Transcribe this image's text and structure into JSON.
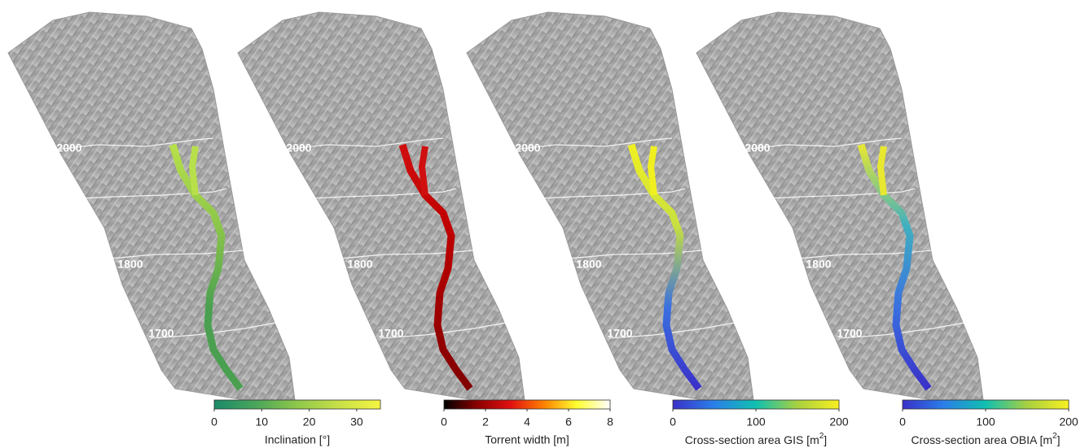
{
  "panels": [
    {
      "contours": [
        "2000",
        "1800",
        "1700"
      ],
      "colorbar": {
        "label": "Inclination [°]",
        "range": [
          0,
          35
        ],
        "ticks": [
          0,
          10,
          20,
          30
        ],
        "colormap": [
          "#1a8a6a",
          "#4aa55a",
          "#8ec84a",
          "#c8e048",
          "#f5f542"
        ]
      },
      "torrent_colors": [
        "#b8e04a",
        "#8cc64a",
        "#4aa050",
        "#4aa050"
      ]
    },
    {
      "contours": [
        "2000",
        "1800",
        "1700"
      ],
      "colorbar": {
        "label": "Torrent width [m]",
        "range": [
          0,
          8
        ],
        "ticks": [
          0,
          2,
          4,
          6,
          8
        ],
        "colormap": [
          "#000000",
          "#8a0000",
          "#e01010",
          "#ff8000",
          "#ffff30",
          "#ffffff"
        ]
      },
      "torrent_colors": [
        "#d01010",
        "#c00000",
        "#a00000",
        "#800000"
      ]
    },
    {
      "contours": [
        "2000",
        "1800",
        "1700"
      ],
      "colorbar": {
        "label_prefix": "Cross-section area GIS [m",
        "label_sup": "2",
        "label_suffix": "]",
        "range": [
          0,
          200
        ],
        "ticks": [
          0,
          100,
          200
        ],
        "colormap": [
          "#3a30c8",
          "#2a80e8",
          "#10c0b0",
          "#a8d040",
          "#f8f020"
        ]
      },
      "torrent_colors": [
        "#f0f020",
        "#c8e040",
        "#3a70e0",
        "#3a30c8"
      ]
    },
    {
      "contours": [
        "2000",
        "1800",
        "1700"
      ],
      "colorbar": {
        "label_prefix": "Cross-section area OBIA [m",
        "label_sup": "2",
        "label_suffix": "]",
        "range": [
          0,
          200
        ],
        "ticks": [
          0,
          100,
          200
        ],
        "colormap": [
          "#3a30c8",
          "#2a80e8",
          "#10c0b0",
          "#a8d040",
          "#f8f020"
        ]
      },
      "torrent_colors": [
        "#e8e830",
        "#40b0c0",
        "#3a70e0",
        "#3a30c8"
      ]
    }
  ]
}
